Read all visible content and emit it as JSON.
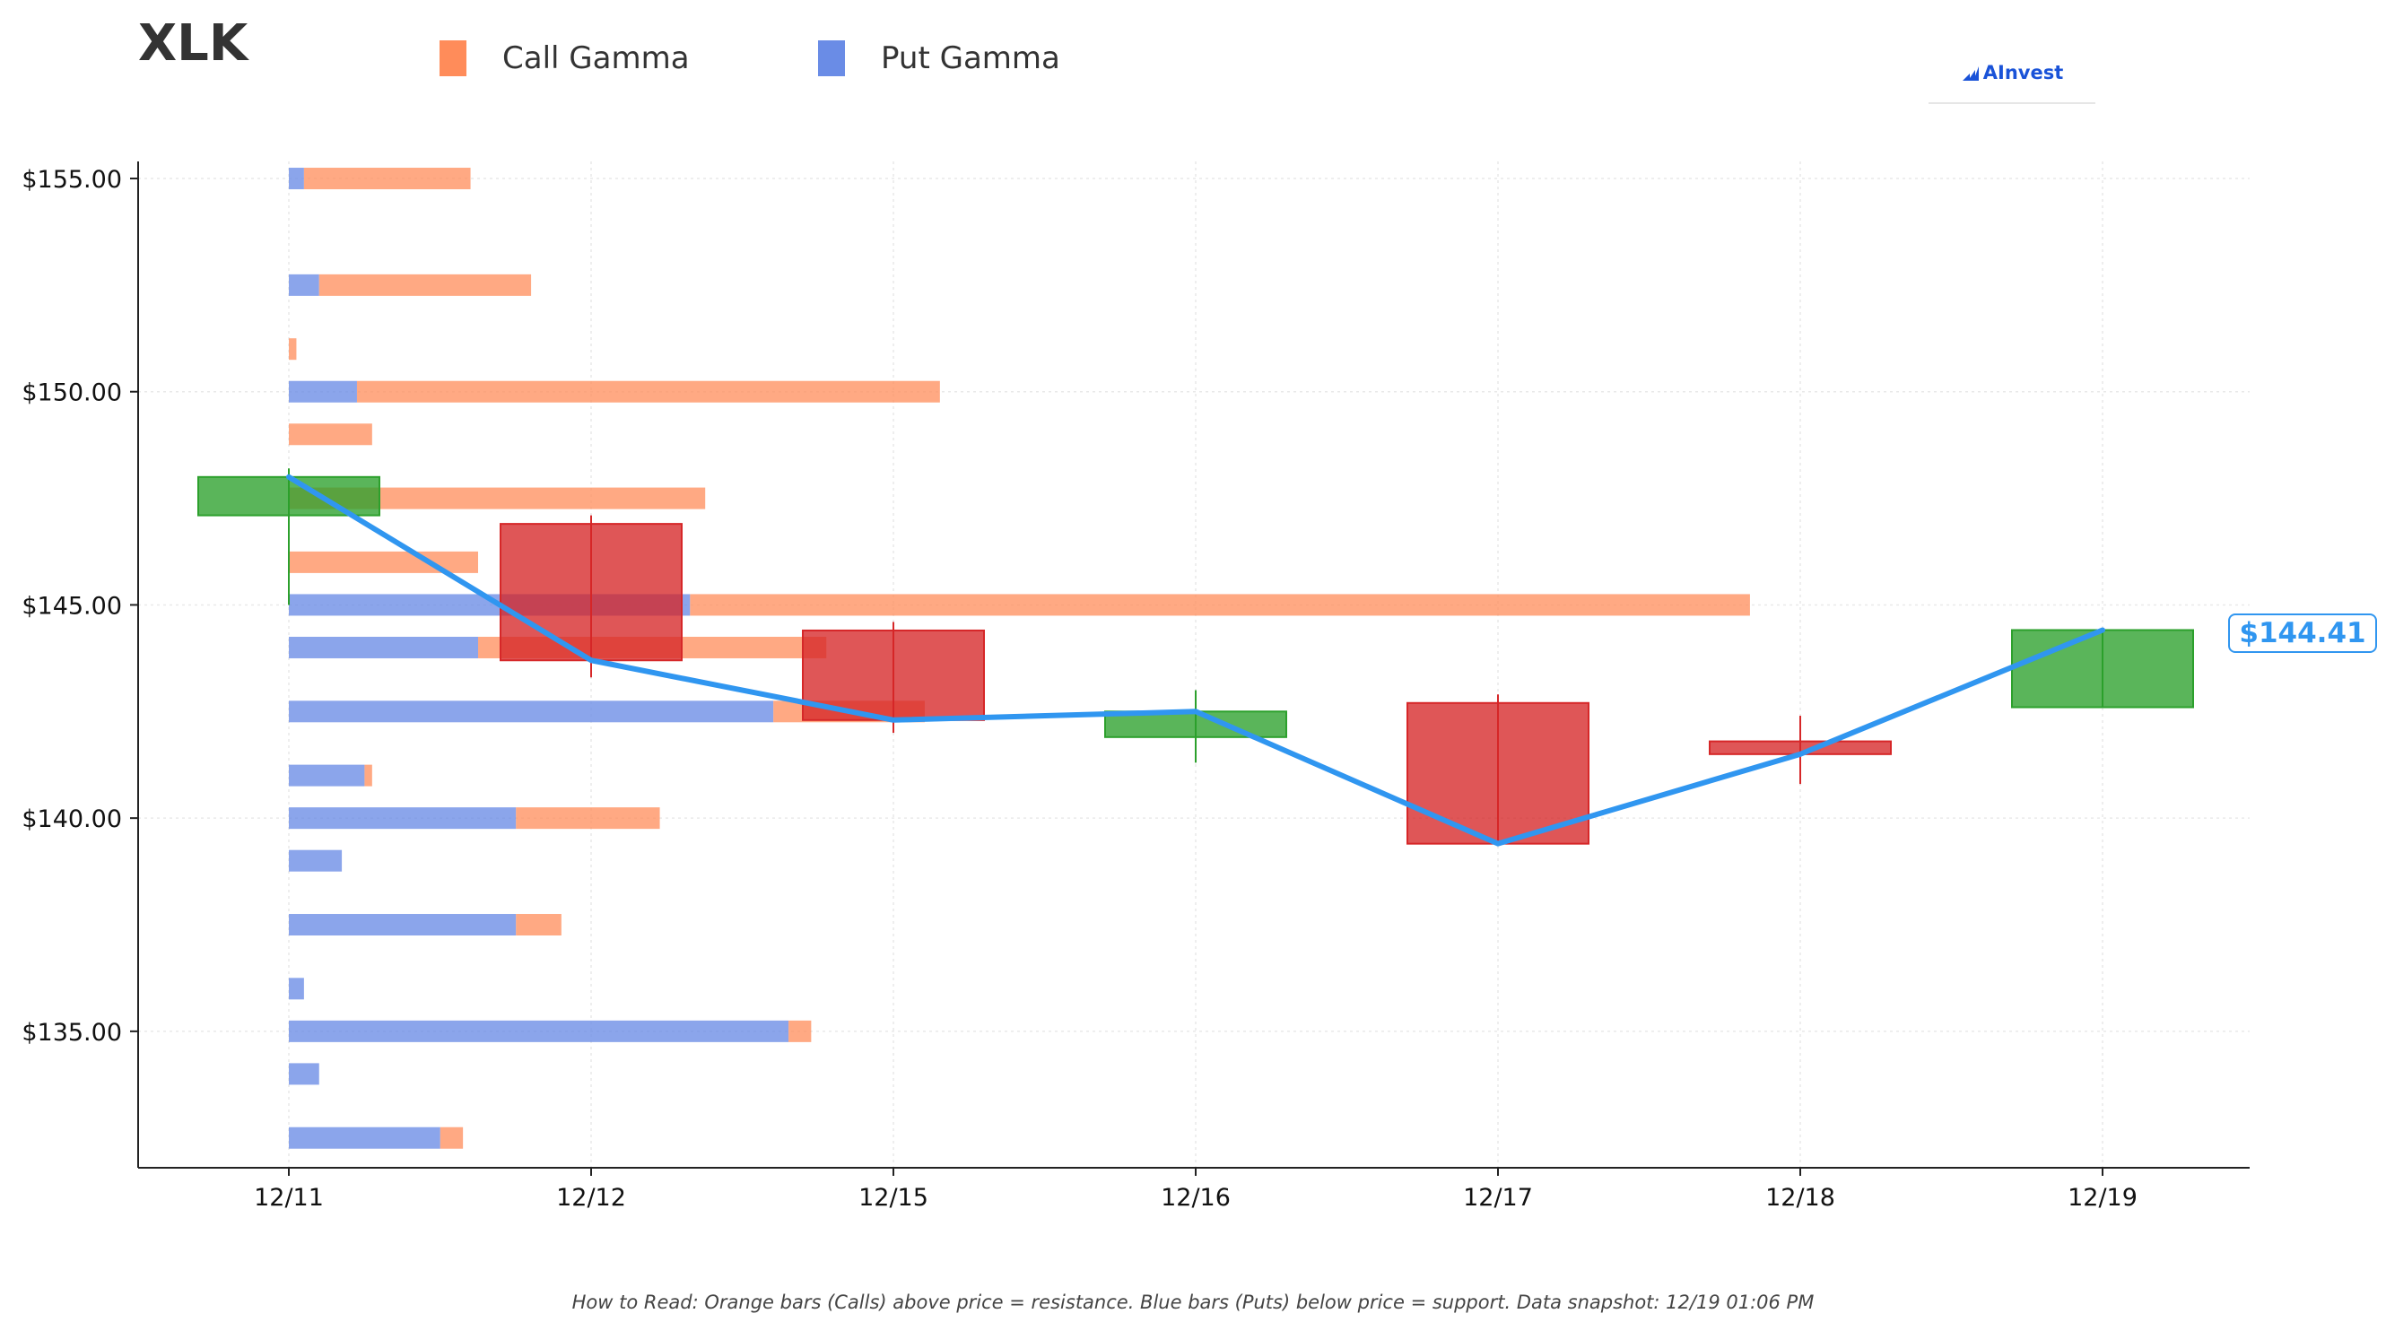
{
  "title": "XLK",
  "legend": [
    {
      "label": "Call Gamma",
      "color": "#ff8c5a"
    },
    {
      "label": "Put Gamma",
      "color": "#6a8ce6"
    }
  ],
  "logo": {
    "text": "AInvest",
    "icon": "ainvest-logo-icon"
  },
  "last_price_label": "$144.41",
  "footnote": "How to Read: Orange bars (Calls) above price = resistance. Blue bars (Puts) below price = support. Data snapshot: 12/19 01:06 PM",
  "colors": {
    "call": "#ff8c5a",
    "put": "#6a8ce6",
    "up": "#2ca02c",
    "down": "#d62728",
    "price_line": "#3096f0",
    "axis": "#222222",
    "grid": "#e9e9e9"
  },
  "chart_data": {
    "type": "candlestick",
    "x_ticks": [
      "12/11",
      "12/12",
      "12/15",
      "12/16",
      "12/17",
      "12/18",
      "12/19"
    ],
    "ylim": [
      131.8,
      155.4
    ],
    "y_ticks": [
      135,
      140,
      145,
      150,
      155
    ],
    "y_tick_labels": [
      "$135.00",
      "$140.00",
      "$145.00",
      "$150.00",
      "$155.00"
    ],
    "grid": true,
    "candles": [
      {
        "date": "12/11",
        "open": 147.1,
        "high": 148.2,
        "low": 145.0,
        "close": 148.0
      },
      {
        "date": "12/12",
        "open": 146.9,
        "high": 147.1,
        "low": 143.3,
        "close": 143.7
      },
      {
        "date": "12/15",
        "open": 144.4,
        "high": 144.6,
        "low": 142.0,
        "close": 142.3
      },
      {
        "date": "12/16",
        "open": 141.9,
        "high": 143.0,
        "low": 141.3,
        "close": 142.5
      },
      {
        "date": "12/17",
        "open": 142.7,
        "high": 142.9,
        "low": 139.4,
        "close": 139.4
      },
      {
        "date": "12/18",
        "open": 141.8,
        "high": 142.4,
        "low": 140.8,
        "close": 141.5
      },
      {
        "date": "12/19",
        "open": 142.6,
        "high": 144.4,
        "low": 142.6,
        "close": 144.41
      }
    ],
    "price_line": [
      148.0,
      143.7,
      142.3,
      142.5,
      139.4,
      141.5,
      144.41
    ],
    "gamma_axis_max": 14.0,
    "gamma_strikes": [
      {
        "strike": 155.0,
        "put": 0.2,
        "call": 2.2
      },
      {
        "strike": 152.5,
        "put": 0.4,
        "call": 2.8
      },
      {
        "strike": 151.0,
        "put": 0.0,
        "call": 0.1
      },
      {
        "strike": 150.0,
        "put": 0.9,
        "call": 7.7
      },
      {
        "strike": 149.0,
        "put": 0.0,
        "call": 1.1
      },
      {
        "strike": 147.5,
        "put": 0.0,
        "call": 5.5
      },
      {
        "strike": 146.0,
        "put": 0.0,
        "call": 2.5
      },
      {
        "strike": 145.0,
        "put": 5.3,
        "call": 14.0
      },
      {
        "strike": 144.0,
        "put": 2.5,
        "call": 4.6
      },
      {
        "strike": 142.5,
        "put": 6.4,
        "call": 2.0
      },
      {
        "strike": 141.0,
        "put": 1.0,
        "call": 0.1
      },
      {
        "strike": 140.0,
        "put": 3.0,
        "call": 1.9
      },
      {
        "strike": 139.0,
        "put": 0.7,
        "call": 0.0
      },
      {
        "strike": 137.5,
        "put": 3.0,
        "call": 0.6
      },
      {
        "strike": 136.0,
        "put": 0.2,
        "call": 0.0
      },
      {
        "strike": 135.0,
        "put": 6.6,
        "call": 0.3
      },
      {
        "strike": 134.0,
        "put": 0.4,
        "call": 0.0
      },
      {
        "strike": 132.5,
        "put": 2.0,
        "call": 0.3
      }
    ]
  }
}
